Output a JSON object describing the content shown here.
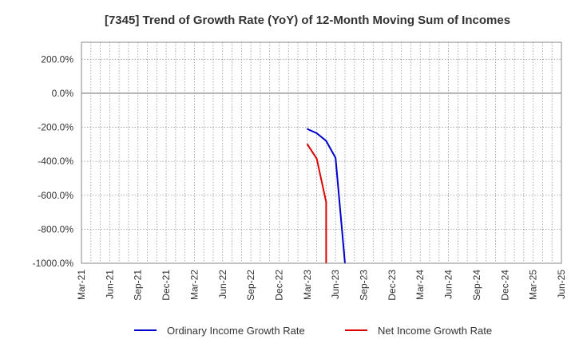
{
  "chart_data": {
    "type": "line",
    "title": "[7345]  Trend of Growth Rate (YoY) of 12-Month Moving Sum of Incomes",
    "xlabel": "",
    "ylabel": "",
    "x_ticks": [
      "Mar-21",
      "Jun-21",
      "Sep-21",
      "Dec-21",
      "Mar-22",
      "Jun-22",
      "Sep-22",
      "Dec-22",
      "Mar-23",
      "Jun-23",
      "Sep-23",
      "Dec-23",
      "Mar-24",
      "Jun-24",
      "Sep-24",
      "Dec-24",
      "Mar-25",
      "Jun-25"
    ],
    "y_ticks": [
      "200.0%",
      "0.0%",
      "-200.0%",
      "-400.0%",
      "-600.0%",
      "-800.0%",
      "-1000.0%"
    ],
    "y_tick_values": [
      200,
      0,
      -200,
      -400,
      -600,
      -800,
      -1000
    ],
    "ylim": [
      -1000,
      300
    ],
    "grid": true,
    "legend_position": "bottom",
    "series": [
      {
        "name": "Ordinary Income Growth Rate",
        "color": "#0000cc",
        "points": [
          {
            "x": "2023-03",
            "y": -210
          },
          {
            "x": "2023-04",
            "y": -235
          },
          {
            "x": "2023-05",
            "y": -280
          },
          {
            "x": "2023-06",
            "y": -380
          },
          {
            "x": "2023-07",
            "y": -1000
          }
        ]
      },
      {
        "name": "Net Income Growth Rate",
        "color": "#dd0000",
        "points": [
          {
            "x": "2023-03",
            "y": -300
          },
          {
            "x": "2023-04",
            "y": -385
          },
          {
            "x": "2023-05",
            "y": -640
          },
          {
            "x": "2023-05",
            "y": -1000
          }
        ]
      }
    ]
  }
}
